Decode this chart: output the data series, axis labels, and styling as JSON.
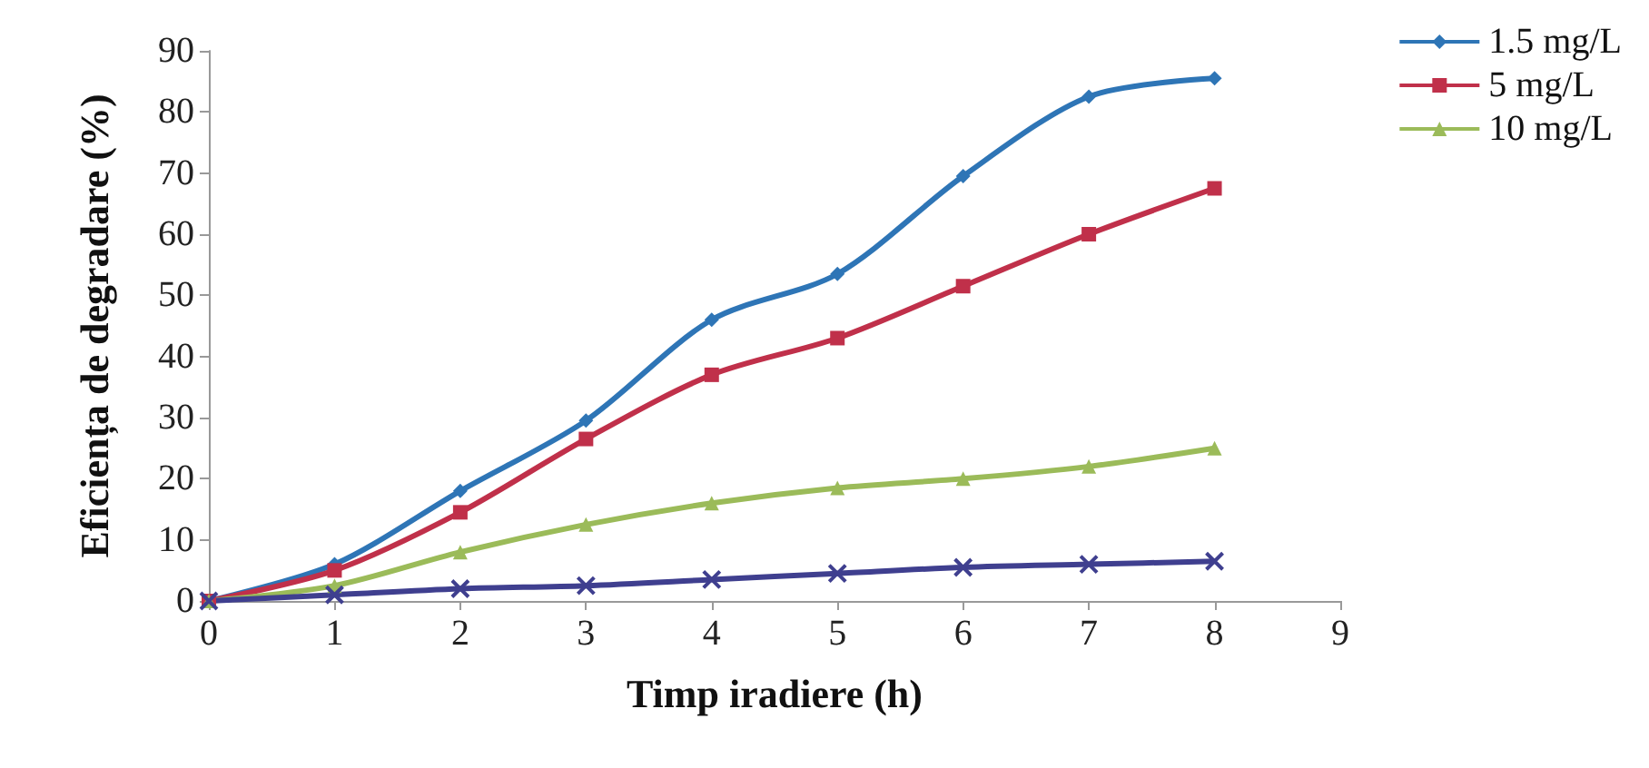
{
  "chart_data": {
    "type": "line",
    "xlabel": "Timp iradiere (h)",
    "ylabel": "Eficiența de degradare (%)",
    "x": [
      0,
      1,
      2,
      3,
      4,
      5,
      6,
      7,
      8
    ],
    "series": [
      {
        "name": "1.5 mg/L",
        "color": "#2e75b6",
        "marker": "diamond",
        "values": [
          0,
          6,
          18,
          29.5,
          46,
          53.5,
          69.5,
          82.5,
          85.5
        ]
      },
      {
        "name": "5 mg/L",
        "color": "#c0304a",
        "marker": "square",
        "values": [
          0,
          5,
          14.5,
          26.5,
          37,
          43,
          51.5,
          60,
          67.5
        ]
      },
      {
        "name": "10 mg/L",
        "color": "#9bbb59",
        "marker": "triangle",
        "values": [
          0,
          2.5,
          8,
          12.5,
          16,
          18.5,
          20,
          22,
          25
        ]
      },
      {
        "color": "#3f3f8f",
        "marker": "cross",
        "values": [
          0,
          1,
          2,
          2.5,
          3.5,
          4.5,
          5.5,
          6,
          6.5
        ]
      }
    ],
    "xlim": [
      0,
      9
    ],
    "xticks": [
      0,
      1,
      2,
      3,
      4,
      5,
      6,
      7,
      8,
      9
    ],
    "ylim": [
      0,
      90
    ],
    "yticks": [
      0,
      10,
      20,
      30,
      40,
      50,
      60,
      70,
      80,
      90
    ],
    "grid": false,
    "legend": "top right"
  }
}
